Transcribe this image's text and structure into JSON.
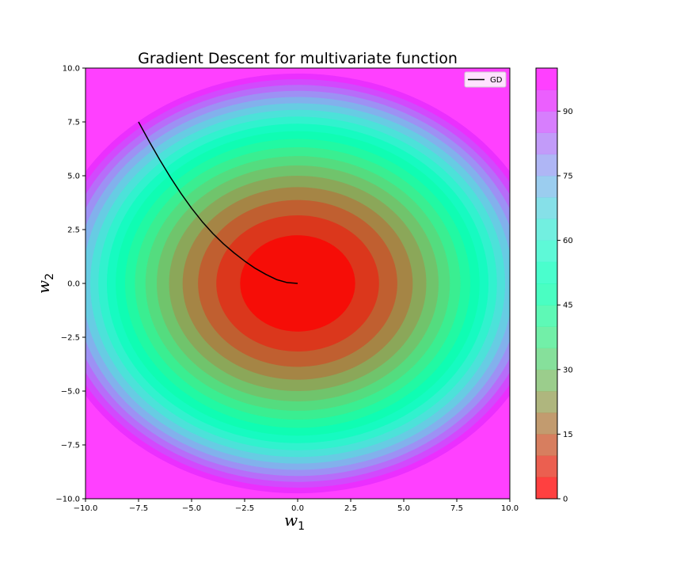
{
  "chart_data": {
    "type": "contour",
    "title": "Gradient Descent for multivariate function",
    "xlabel": {
      "base": "w",
      "sub": "1"
    },
    "ylabel": {
      "base": "w",
      "sub": "2"
    },
    "xlim": [
      -10,
      10
    ],
    "ylim": [
      -10,
      10
    ],
    "x_ticks": [
      "−10.0",
      "−7.5",
      "−5.0",
      "−2.5",
      "0.0",
      "2.5",
      "5.0",
      "7.5",
      "10.0"
    ],
    "y_ticks": [
      "−10.0",
      "−7.5",
      "−5.0",
      "−2.5",
      "0.0",
      "2.5",
      "5.0",
      "7.5",
      "10.0"
    ],
    "function": {
      "ax": 0.68,
      "by": 1.0
    },
    "levels": [
      0,
      5,
      10,
      15,
      20,
      25,
      30,
      35,
      40,
      45,
      50,
      55,
      60,
      65,
      70,
      75,
      80,
      85,
      90,
      95,
      100
    ],
    "colorbar_range": [
      0,
      100
    ],
    "colorbar_ticks": [
      "0",
      "15",
      "30",
      "45",
      "60",
      "75",
      "90"
    ],
    "colormap": "rainbow",
    "grid": false,
    "legend": {
      "position": "top-right",
      "entries": [
        {
          "label": "GD",
          "color": "#000000"
        }
      ]
    },
    "series": [
      {
        "name": "GD",
        "color": "#000000",
        "x": [
          -7.5,
          -7.0,
          -6.5,
          -6.0,
          -5.5,
          -5.0,
          -4.5,
          -4.0,
          -3.5,
          -3.0,
          -2.5,
          -2.0,
          -1.5,
          -1.0,
          -0.5,
          0.0
        ],
        "y": [
          7.5,
          6.6,
          5.74,
          4.93,
          4.18,
          3.49,
          2.87,
          2.32,
          1.84,
          1.42,
          1.04,
          0.7,
          0.42,
          0.18,
          0.04,
          0.0
        ]
      }
    ]
  }
}
